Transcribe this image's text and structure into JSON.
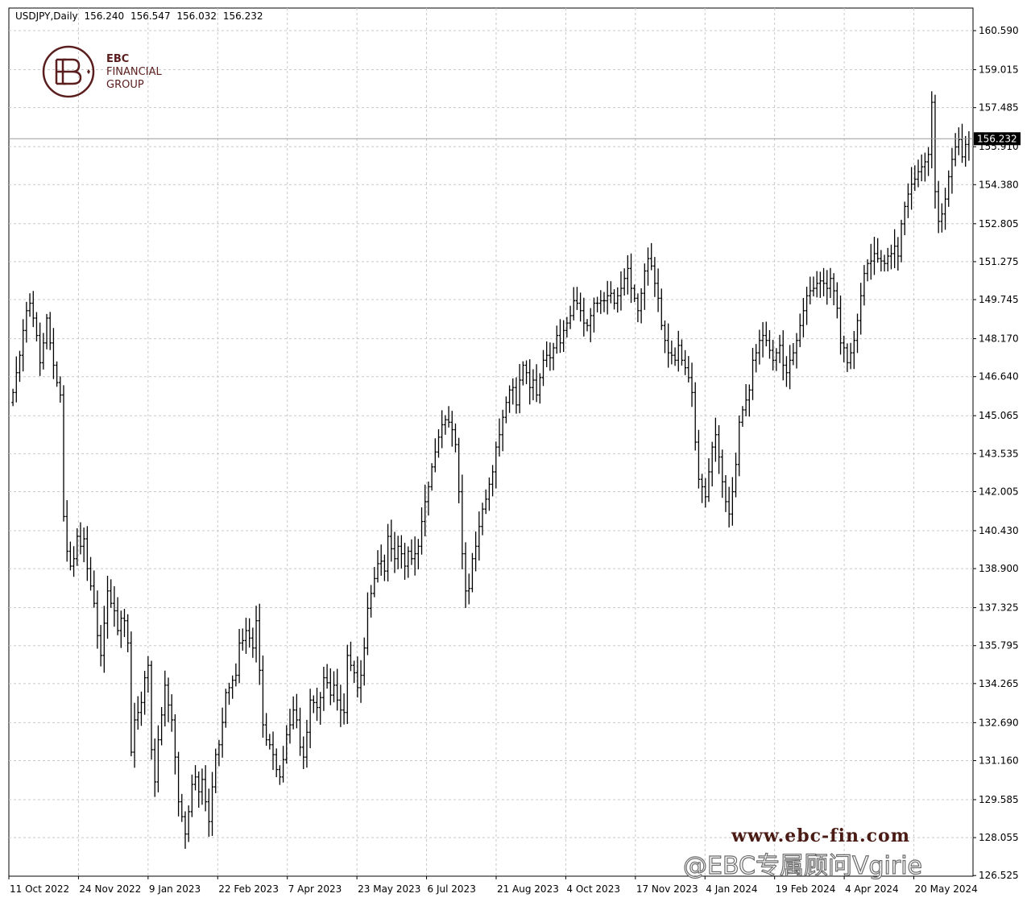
{
  "header": {
    "symbol": "USDJPY,Daily",
    "open": "156.240",
    "high": "156.547",
    "low": "156.032",
    "close": "156.232"
  },
  "logo": {
    "line1": "EBC",
    "line2": "FINANCIAL",
    "line3": "GROUP",
    "color": "#5a1e1e"
  },
  "watermark": {
    "url": "www.ebc-fin.com",
    "weibo": "@EBC专属顾问Vgirie"
  },
  "current_price_label": "156.232",
  "chart_data": {
    "type": "ohlc",
    "instrument": "USDJPY",
    "timeframe": "Daily",
    "ylim": [
      126.5,
      161.5
    ],
    "y_ticks": [
      "160.590",
      "159.015",
      "157.485",
      "155.910",
      "154.380",
      "152.805",
      "151.275",
      "149.745",
      "148.170",
      "146.640",
      "145.065",
      "143.535",
      "142.005",
      "140.430",
      "138.900",
      "137.325",
      "135.795",
      "134.265",
      "132.690",
      "131.160",
      "129.585",
      "128.055",
      "126.525"
    ],
    "x_labels": [
      "11 Oct 2022",
      "24 Nov 2022",
      "9 Jan 2023",
      "22 Feb 2023",
      "7 Apr 2023",
      "23 May 2023",
      "6 Jul 2023",
      "21 Aug 2023",
      "4 Oct 2023",
      "17 Nov 2023",
      "4 Jan 2024",
      "19 Feb 2024",
      "4 Apr 2024",
      "20 May 2024"
    ],
    "grid": true,
    "current_price": 156.232,
    "closes": [
      146.0,
      146.8,
      147.5,
      148.5,
      149.3,
      149.6,
      149.0,
      148.3,
      147.2,
      148.0,
      149.0,
      148.0,
      147.1,
      146.4,
      145.9,
      141.0,
      139.6,
      139.0,
      139.3,
      140.2,
      139.8,
      140.1,
      138.9,
      138.2,
      137.5,
      136.2,
      135.4,
      136.7,
      138.0,
      137.5,
      137.2,
      136.4,
      136.9,
      136.8,
      135.9,
      131.5,
      132.8,
      133.1,
      133.5,
      134.5,
      135.0,
      131.6,
      130.3,
      132.0,
      133.0,
      134.2,
      133.4,
      132.8,
      131.3,
      129.5,
      128.9,
      128.2,
      129.1,
      130.2,
      130.5,
      129.9,
      130.4,
      129.5,
      128.7,
      130.1,
      131.4,
      131.8,
      132.7,
      133.9,
      134.1,
      134.4,
      134.6,
      135.9,
      136.0,
      136.4,
      136.1,
      135.7,
      136.8,
      134.8,
      132.6,
      132.0,
      131.8,
      131.4,
      130.8,
      130.5,
      131.2,
      132.2,
      132.6,
      133.2,
      132.8,
      131.7,
      131.3,
      132.3,
      133.6,
      133.5,
      133.3,
      133.7,
      134.5,
      134.3,
      133.8,
      134.2,
      133.6,
      133.2,
      133.1,
      135.4,
      135.0,
      134.7,
      134.1,
      134.6,
      135.7,
      137.3,
      137.9,
      138.5,
      139.1,
      139.2,
      138.8,
      140.2,
      139.7,
      139.3,
      139.8,
      139.5,
      139.0,
      139.6,
      139.3,
      139.5,
      139.8,
      140.8,
      141.6,
      142.2,
      143.0,
      143.6,
      144.2,
      144.7,
      144.9,
      144.8,
      144.5,
      143.9,
      142.0,
      139.5,
      138.0,
      138.1,
      139.3,
      139.8,
      140.6,
      141.3,
      141.7,
      142.3,
      142.8,
      143.8,
      144.3,
      145.0,
      145.6,
      146.1,
      146.2,
      145.5,
      146.5,
      147.1,
      146.8,
      146.2,
      146.5,
      145.9,
      146.6,
      147.3,
      147.5,
      147.4,
      147.8,
      148.3,
      148.0,
      148.5,
      148.8,
      149.1,
      149.7,
      149.6,
      149.3,
      148.8,
      148.7,
      149.1,
      149.6,
      149.6,
      149.7,
      149.7,
      149.9,
      150.0,
      149.6,
      149.9,
      150.2,
      150.6,
      151.0,
      150.2,
      149.8,
      149.3,
      150.0,
      150.9,
      151.4,
      151.1,
      150.4,
      149.8,
      148.7,
      148.1,
      147.6,
      147.5,
      147.3,
      147.9,
      147.3,
      147.0,
      146.6,
      146.0,
      144.0,
      142.5,
      142.2,
      141.8,
      142.8,
      143.8,
      144.3,
      143.4,
      142.4,
      141.6,
      141.1,
      142.0,
      143.1,
      144.8,
      145.3,
      145.7,
      146.1,
      147.3,
      147.6,
      148.1,
      148.3,
      148.1,
      147.7,
      147.3,
      147.6,
      147.9,
      147.1,
      146.8,
      147.3,
      147.6,
      148.1,
      148.7,
      149.3,
      149.9,
      150.1,
      150.2,
      150.4,
      150.5,
      150.4,
      150.2,
      150.6,
      150.1,
      149.4,
      148.0,
      147.8,
      147.2,
      147.6,
      148.1,
      148.9,
      149.9,
      150.8,
      151.2,
      151.3,
      151.6,
      151.4,
      151.3,
      151.2,
      151.5,
      151.6,
      151.9,
      151.5,
      152.8,
      153.5,
      154.0,
      154.4,
      154.6,
      154.9,
      155.1,
      155.3,
      155.6,
      157.7,
      154.1,
      152.9,
      153.2,
      153.8,
      154.7,
      155.4,
      155.9,
      156.2,
      155.5,
      156.0,
      156.232
    ]
  }
}
